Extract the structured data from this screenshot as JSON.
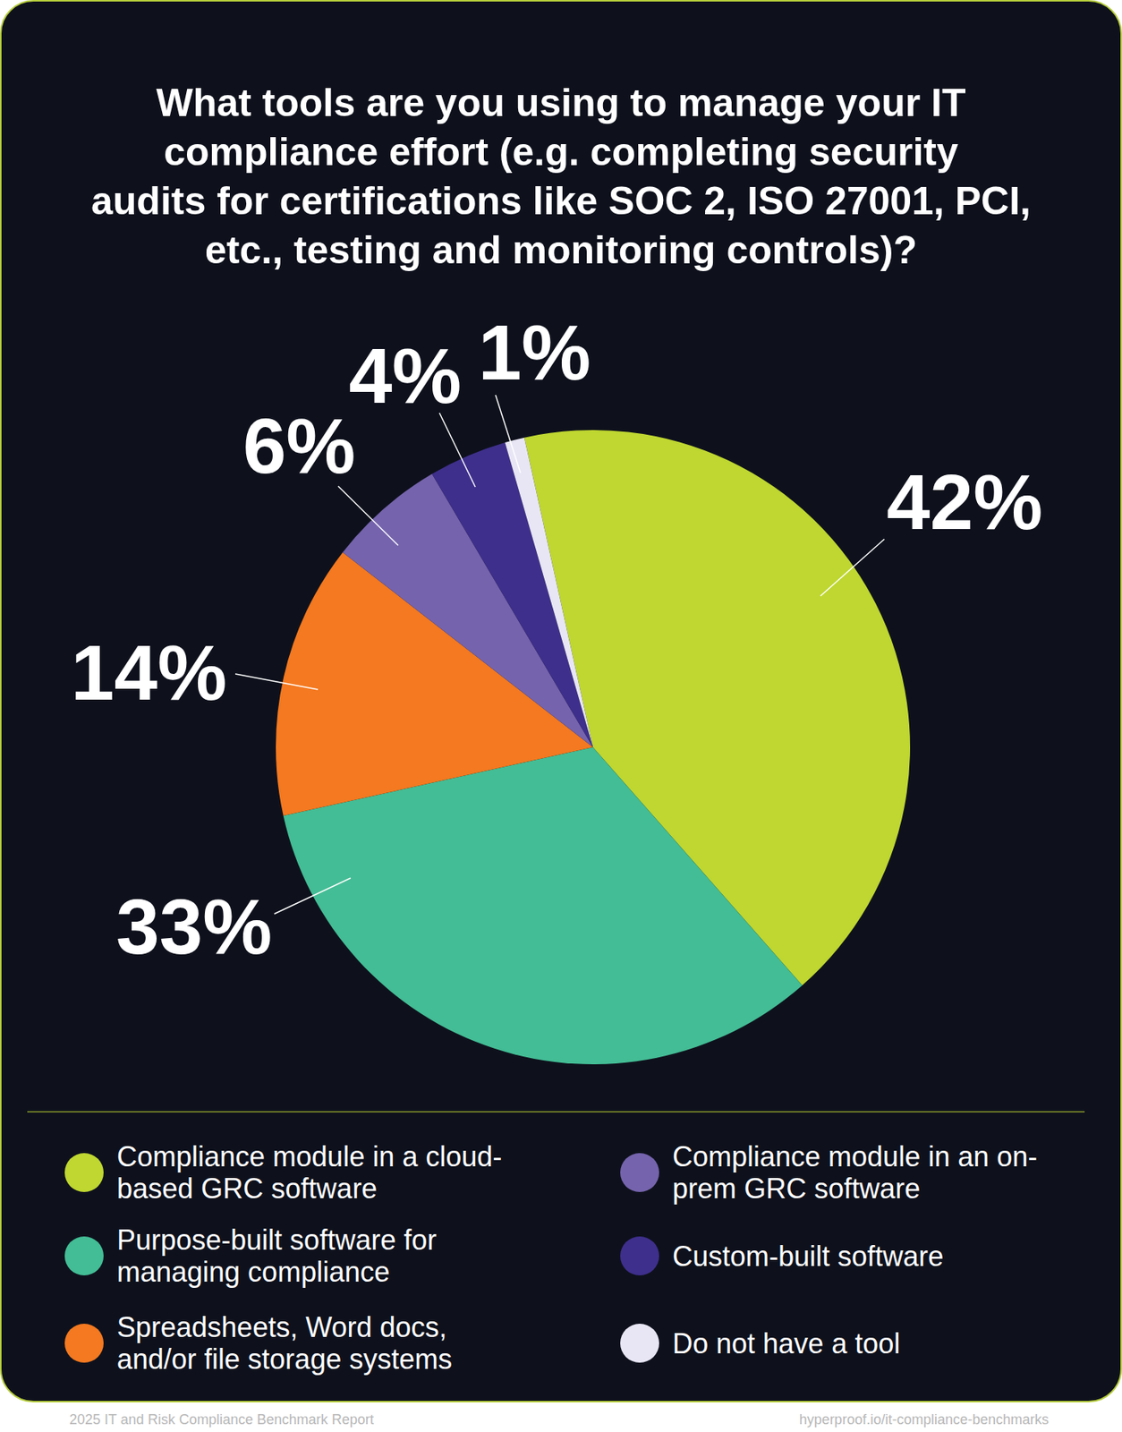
{
  "chart_data": {
    "type": "pie",
    "title": "What tools are you using to manage your IT\ncompliance effort (e.g. completing security\naudits for certifications like SOC 2, ISO 27001, PCI,\netc., testing and monitoring controls)?",
    "categories": [
      "Compliance module in a cloud-based GRC software",
      "Purpose-built software for managing compliance",
      "Spreadsheets, Word docs, and/or file storage systems",
      "Compliance module in an on-prem GRC software",
      "Custom-built software",
      "Do not have a tool"
    ],
    "values": [
      42,
      33,
      14,
      6,
      4,
      1
    ],
    "value_labels": [
      "42%",
      "33%",
      "14%",
      "6%",
      "4%",
      "1%"
    ],
    "colors": [
      "#bfd730",
      "#43bd95",
      "#f47920",
      "#7563ad",
      "#3e2f8c",
      "#e8e6f5"
    ],
    "data_labels": true,
    "legend": "bottom"
  },
  "footer": {
    "left": "2025 IT and Risk Compliance Benchmark Report",
    "right": "hyperproof.io/it-compliance-benchmarks"
  }
}
